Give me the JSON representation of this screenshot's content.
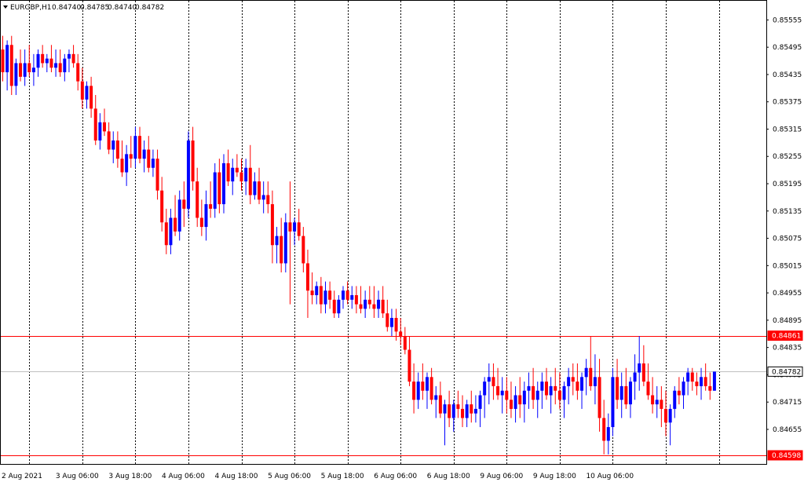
{
  "header": {
    "symbol_label": "EURGBP,H1",
    "ohlc": [
      "0.84740",
      "0.84785",
      "0.84740",
      "0.84782"
    ],
    "dropdown_icon": "triangle-down-icon"
  },
  "colors": {
    "bull": "#0000ff",
    "bear": "#ff0000",
    "grid": "#000000",
    "hline": "#ff0000",
    "bid_line": "#c0c0c0",
    "background": "#ffffff"
  },
  "chart_data": {
    "type": "candlestick",
    "title": "EURGBP,H1",
    "ylim": [
      0.84598,
      0.85585
    ],
    "y_ticks": [
      "0.85555",
      "0.85495",
      "0.85435",
      "0.85375",
      "0.85315",
      "0.85255",
      "0.85195",
      "0.85135",
      "0.85075",
      "0.85015",
      "0.84955",
      "0.84895",
      "0.84835",
      "0.84775",
      "0.84715",
      "0.84655"
    ],
    "x_ticks": [
      "2 Aug 2021",
      "3 Aug 06:00",
      "3 Aug 18:00",
      "4 Aug 06:00",
      "4 Aug 18:00",
      "5 Aug 06:00",
      "5 Aug 18:00",
      "6 Aug 06:00",
      "6 Aug 18:00",
      "9 Aug 06:00",
      "9 Aug 18:00",
      "10 Aug 06:00"
    ],
    "vertical_grid": "dotted, every 12 bars",
    "horizontal_lines": [
      {
        "price": "0.84861",
        "color": "#ff0000"
      },
      {
        "price": "0.84598",
        "color": "#ff0000"
      }
    ],
    "current_price": "0.84782",
    "candles": [
      [
        0.8549,
        0.8552,
        0.8542,
        0.8544
      ],
      [
        0.8544,
        0.8551,
        0.854,
        0.855
      ],
      [
        0.855,
        0.8552,
        0.8539,
        0.8541
      ],
      [
        0.8541,
        0.8547,
        0.8539,
        0.8546
      ],
      [
        0.8546,
        0.8549,
        0.8542,
        0.8543
      ],
      [
        0.8543,
        0.8549,
        0.8541,
        0.8546
      ],
      [
        0.8546,
        0.855,
        0.8543,
        0.8544
      ],
      [
        0.8544,
        0.8548,
        0.8541,
        0.8545
      ],
      [
        0.8545,
        0.8549,
        0.8543,
        0.8548
      ],
      [
        0.8548,
        0.855,
        0.8545,
        0.8546
      ],
      [
        0.8546,
        0.8548,
        0.8544,
        0.8547
      ],
      [
        0.8547,
        0.855,
        0.8544,
        0.8545
      ],
      [
        0.8545,
        0.8549,
        0.8543,
        0.8546
      ],
      [
        0.8546,
        0.8549,
        0.8543,
        0.8544
      ],
      [
        0.8544,
        0.8548,
        0.8542,
        0.8547
      ],
      [
        0.8547,
        0.8549,
        0.8544,
        0.8548
      ],
      [
        0.8548,
        0.855,
        0.8545,
        0.8546
      ],
      [
        0.8546,
        0.8548,
        0.854,
        0.8542
      ],
      [
        0.8542,
        0.8545,
        0.8536,
        0.8538
      ],
      [
        0.8538,
        0.8542,
        0.8536,
        0.8541
      ],
      [
        0.8541,
        0.8543,
        0.8534,
        0.8536
      ],
      [
        0.8536,
        0.8539,
        0.8528,
        0.8529
      ],
      [
        0.8529,
        0.8535,
        0.8527,
        0.8533
      ],
      [
        0.8533,
        0.8536,
        0.853,
        0.8531
      ],
      [
        0.8531,
        0.8533,
        0.8526,
        0.8527
      ],
      [
        0.8527,
        0.8531,
        0.8524,
        0.8529
      ],
      [
        0.8529,
        0.8531,
        0.8523,
        0.8525
      ],
      [
        0.8525,
        0.8529,
        0.8521,
        0.8522
      ],
      [
        0.8522,
        0.8528,
        0.8519,
        0.8526
      ],
      [
        0.8526,
        0.853,
        0.8523,
        0.8525
      ],
      [
        0.8525,
        0.8532,
        0.8523,
        0.853
      ],
      [
        0.853,
        0.8532,
        0.8524,
        0.8525
      ],
      [
        0.8525,
        0.8529,
        0.8522,
        0.8527
      ],
      [
        0.8527,
        0.853,
        0.8522,
        0.8523
      ],
      [
        0.8523,
        0.8527,
        0.8521,
        0.8525
      ],
      [
        0.8525,
        0.8527,
        0.8516,
        0.8518
      ],
      [
        0.8518,
        0.8521,
        0.8509,
        0.8511
      ],
      [
        0.8511,
        0.8514,
        0.8504,
        0.8506
      ],
      [
        0.8506,
        0.8514,
        0.8504,
        0.8512
      ],
      [
        0.8512,
        0.8517,
        0.8508,
        0.8509
      ],
      [
        0.8509,
        0.8518,
        0.8507,
        0.8516
      ],
      [
        0.8516,
        0.852,
        0.851,
        0.8514
      ],
      [
        0.8514,
        0.8531,
        0.8512,
        0.8529
      ],
      [
        0.8529,
        0.8532,
        0.8518,
        0.852
      ],
      [
        0.852,
        0.8523,
        0.851,
        0.8512
      ],
      [
        0.8512,
        0.8516,
        0.8508,
        0.851
      ],
      [
        0.851,
        0.8518,
        0.8507,
        0.8515
      ],
      [
        0.8515,
        0.852,
        0.8512,
        0.8514
      ],
      [
        0.8514,
        0.8524,
        0.8512,
        0.8522
      ],
      [
        0.8522,
        0.8525,
        0.8513,
        0.8515
      ],
      [
        0.8515,
        0.8526,
        0.8513,
        0.8524
      ],
      [
        0.8524,
        0.8527,
        0.8519,
        0.852
      ],
      [
        0.852,
        0.8525,
        0.8517,
        0.8523
      ],
      [
        0.8523,
        0.8526,
        0.8521,
        0.8522
      ],
      [
        0.8522,
        0.8525,
        0.8518,
        0.852
      ],
      [
        0.852,
        0.8525,
        0.8517,
        0.8523
      ],
      [
        0.8523,
        0.8528,
        0.8515,
        0.8517
      ],
      [
        0.8517,
        0.8522,
        0.8516,
        0.852
      ],
      [
        0.852,
        0.8523,
        0.8515,
        0.8516
      ],
      [
        0.8516,
        0.852,
        0.8513,
        0.8517
      ],
      [
        0.8517,
        0.852,
        0.8513,
        0.8515
      ],
      [
        0.8515,
        0.8518,
        0.8502,
        0.8506
      ],
      [
        0.8506,
        0.851,
        0.8502,
        0.8508
      ],
      [
        0.8508,
        0.8512,
        0.85,
        0.8502
      ],
      [
        0.8502,
        0.8513,
        0.85,
        0.8511
      ],
      [
        0.8511,
        0.852,
        0.8493,
        0.8509
      ],
      [
        0.8509,
        0.8512,
        0.8506,
        0.8511
      ],
      [
        0.8511,
        0.8514,
        0.8507,
        0.8508
      ],
      [
        0.8508,
        0.851,
        0.85,
        0.8502
      ],
      [
        0.8502,
        0.8505,
        0.849,
        0.8496
      ],
      [
        0.8496,
        0.85,
        0.8493,
        0.8495
      ],
      [
        0.8495,
        0.8498,
        0.8493,
        0.8497
      ],
      [
        0.8497,
        0.8499,
        0.8491,
        0.8493
      ],
      [
        0.8493,
        0.8498,
        0.8491,
        0.8496
      ],
      [
        0.8496,
        0.8498,
        0.8492,
        0.8494
      ],
      [
        0.8494,
        0.8496,
        0.849,
        0.8491
      ],
      [
        0.8491,
        0.8495,
        0.849,
        0.8494
      ],
      [
        0.8494,
        0.8497,
        0.8492,
        0.8496
      ],
      [
        0.8496,
        0.8498,
        0.8493,
        0.8494
      ],
      [
        0.8494,
        0.8497,
        0.8492,
        0.8495
      ],
      [
        0.8495,
        0.8497,
        0.8491,
        0.8493
      ],
      [
        0.8493,
        0.8497,
        0.8491,
        0.8492
      ],
      [
        0.8492,
        0.8496,
        0.849,
        0.8494
      ],
      [
        0.8494,
        0.8497,
        0.8492,
        0.8493
      ],
      [
        0.8493,
        0.8497,
        0.849,
        0.8492
      ],
      [
        0.8492,
        0.8496,
        0.849,
        0.8494
      ],
      [
        0.8494,
        0.8497,
        0.849,
        0.8491
      ],
      [
        0.8491,
        0.8494,
        0.8487,
        0.8488
      ],
      [
        0.8488,
        0.8492,
        0.8486,
        0.849
      ],
      [
        0.849,
        0.8492,
        0.8485,
        0.8487
      ],
      [
        0.8487,
        0.849,
        0.8484,
        0.8486
      ],
      [
        0.8486,
        0.8488,
        0.8482,
        0.8483
      ],
      [
        0.8483,
        0.8486,
        0.8475,
        0.8476
      ],
      [
        0.8476,
        0.848,
        0.8469,
        0.8472
      ],
      [
        0.8472,
        0.8478,
        0.847,
        0.8476
      ],
      [
        0.8476,
        0.848,
        0.8472,
        0.8474
      ],
      [
        0.8474,
        0.8478,
        0.847,
        0.8477
      ],
      [
        0.8477,
        0.8479,
        0.8471,
        0.8472
      ],
      [
        0.8472,
        0.8475,
        0.8468,
        0.8473
      ],
      [
        0.8473,
        0.8476,
        0.8468,
        0.8469
      ],
      [
        0.8469,
        0.8472,
        0.8462,
        0.8471
      ],
      [
        0.8471,
        0.8474,
        0.8466,
        0.8468
      ],
      [
        0.8468,
        0.8472,
        0.8465,
        0.8471
      ],
      [
        0.8471,
        0.8474,
        0.8468,
        0.847
      ],
      [
        0.847,
        0.8473,
        0.8466,
        0.8468
      ],
      [
        0.8468,
        0.8472,
        0.8466,
        0.8471
      ],
      [
        0.8471,
        0.8474,
        0.8467,
        0.8469
      ],
      [
        0.8469,
        0.8473,
        0.8467,
        0.847
      ],
      [
        0.847,
        0.8474,
        0.8466,
        0.8473
      ],
      [
        0.8473,
        0.8477,
        0.8468,
        0.8476
      ],
      [
        0.8476,
        0.848,
        0.8471,
        0.8477
      ],
      [
        0.8477,
        0.848,
        0.8472,
        0.8475
      ],
      [
        0.8475,
        0.8479,
        0.8472,
        0.8473
      ],
      [
        0.8473,
        0.8477,
        0.8469,
        0.8474
      ],
      [
        0.8474,
        0.8477,
        0.8469,
        0.8472
      ],
      [
        0.8472,
        0.8476,
        0.8468,
        0.847
      ],
      [
        0.847,
        0.8475,
        0.8467,
        0.8473
      ],
      [
        0.8473,
        0.8477,
        0.8468,
        0.8471
      ],
      [
        0.8471,
        0.8476,
        0.8467,
        0.8474
      ],
      [
        0.8474,
        0.8478,
        0.847,
        0.8475
      ],
      [
        0.8475,
        0.8479,
        0.847,
        0.8472
      ],
      [
        0.8472,
        0.8476,
        0.8468,
        0.8474
      ],
      [
        0.8474,
        0.8478,
        0.847,
        0.8476
      ],
      [
        0.8476,
        0.8479,
        0.8472,
        0.8473
      ],
      [
        0.8473,
        0.8477,
        0.8469,
        0.8475
      ],
      [
        0.8475,
        0.8479,
        0.8471,
        0.8474
      ],
      [
        0.8474,
        0.8478,
        0.847,
        0.8472
      ],
      [
        0.8472,
        0.8476,
        0.8468,
        0.8475
      ],
      [
        0.8475,
        0.8479,
        0.8471,
        0.8477
      ],
      [
        0.8477,
        0.848,
        0.8473,
        0.8476
      ],
      [
        0.8476,
        0.848,
        0.8472,
        0.8474
      ],
      [
        0.8474,
        0.8478,
        0.847,
        0.8477
      ],
      [
        0.8477,
        0.8481,
        0.8473,
        0.8479
      ],
      [
        0.8479,
        0.8486,
        0.8474,
        0.8475
      ],
      [
        0.8475,
        0.8482,
        0.8471,
        0.8477
      ],
      [
        0.8477,
        0.8481,
        0.8465,
        0.8468
      ],
      [
        0.8468,
        0.8472,
        0.846,
        0.8463
      ],
      [
        0.8463,
        0.8469,
        0.846,
        0.8466
      ],
      [
        0.8466,
        0.8479,
        0.8464,
        0.8477
      ],
      [
        0.8477,
        0.8481,
        0.847,
        0.8472
      ],
      [
        0.8472,
        0.8478,
        0.8468,
        0.8475
      ],
      [
        0.8475,
        0.8479,
        0.847,
        0.8471
      ],
      [
        0.8471,
        0.8477,
        0.8468,
        0.8476
      ],
      [
        0.8476,
        0.8482,
        0.8472,
        0.8478
      ],
      [
        0.8478,
        0.8486,
        0.8474,
        0.848
      ],
      [
        0.848,
        0.8484,
        0.8475,
        0.8476
      ],
      [
        0.8476,
        0.848,
        0.8472,
        0.8473
      ],
      [
        0.8473,
        0.8477,
        0.8469,
        0.8471
      ],
      [
        0.8471,
        0.8475,
        0.8468,
        0.8472
      ],
      [
        0.8472,
        0.8475,
        0.8466,
        0.847
      ],
      [
        0.847,
        0.8474,
        0.8464,
        0.8467
      ],
      [
        0.8467,
        0.8471,
        0.8462,
        0.847
      ],
      [
        0.847,
        0.8475,
        0.8468,
        0.8474
      ],
      [
        0.8474,
        0.8477,
        0.8471,
        0.8473
      ],
      [
        0.8473,
        0.8477,
        0.847,
        0.8476
      ],
      [
        0.8476,
        0.8479,
        0.8473,
        0.8478
      ],
      [
        0.8478,
        0.8479,
        0.8474,
        0.8476
      ],
      [
        0.8476,
        0.8478,
        0.8473,
        0.8475
      ],
      [
        0.8475,
        0.8479,
        0.8472,
        0.8477
      ],
      [
        0.8477,
        0.848,
        0.8474,
        0.8475
      ],
      [
        0.8475,
        0.8478,
        0.8472,
        0.8474
      ],
      [
        0.8474,
        0.8478,
        0.8474,
        0.84782
      ]
    ]
  }
}
